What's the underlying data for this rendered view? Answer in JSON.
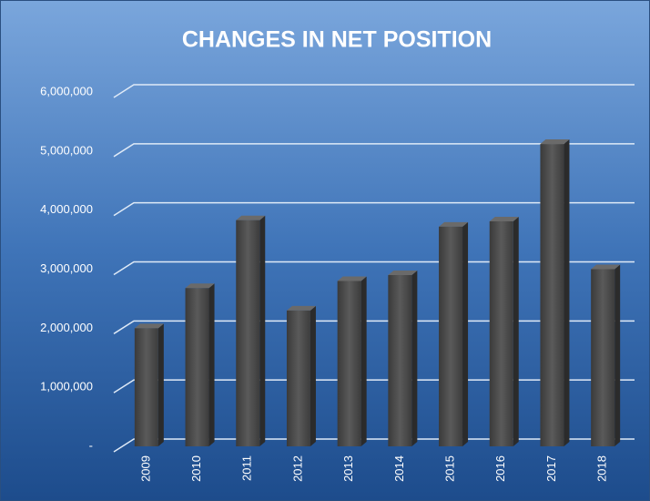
{
  "chart_data": {
    "type": "bar",
    "title": "CHANGES IN NET POSITION",
    "categories": [
      "2009",
      "2010",
      "2011",
      "2012",
      "2013",
      "2014",
      "2015",
      "2016",
      "2017",
      "2018"
    ],
    "values": [
      2000000,
      2680000,
      3830000,
      2300000,
      2800000,
      2900000,
      3720000,
      3810000,
      5120000,
      3000000
    ],
    "color": "#4a4a4a",
    "ylim": [
      0,
      6000000
    ],
    "yticks": [
      {
        "value": 0,
        "label": "-"
      },
      {
        "value": 1000000,
        "label": "1,000,000"
      },
      {
        "value": 2000000,
        "label": "2,000,000"
      },
      {
        "value": 3000000,
        "label": "3,000,000"
      },
      {
        "value": 4000000,
        "label": "4,000,000"
      },
      {
        "value": 5000000,
        "label": "5,000,000"
      },
      {
        "value": 6000000,
        "label": "6,000,000"
      }
    ],
    "grid": true
  }
}
